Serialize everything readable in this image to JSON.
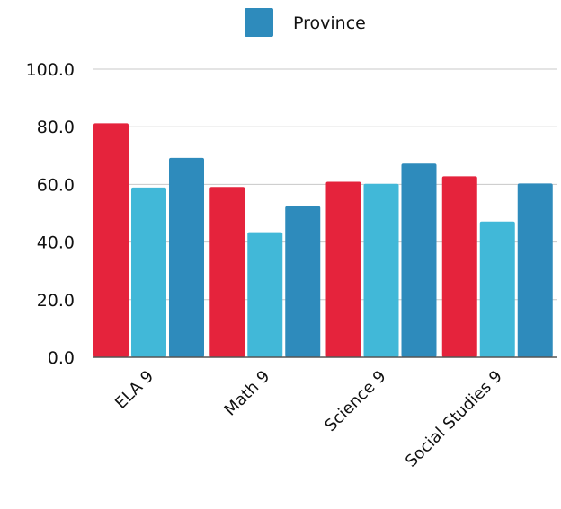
{
  "chart_data": {
    "type": "bar",
    "categories": [
      "ELA 9",
      "Math 9",
      "Science 9",
      "Social Studies 9"
    ],
    "series": [
      {
        "values": [
          81.2,
          59.1,
          60.9,
          62.8
        ],
        "color": "#e5233c"
      },
      {
        "values": [
          58.9,
          43.4,
          60.2,
          47.1
        ],
        "color": "#41b8d8"
      },
      {
        "name": "Province",
        "values": [
          69.2,
          52.4,
          67.2,
          60.3
        ],
        "color": "#2e8bbc"
      }
    ],
    "ylim": [
      0,
      100
    ],
    "yticks": [
      "0.0",
      "20.0",
      "40.0",
      "60.0",
      "80.0",
      "100.0"
    ],
    "grid": true,
    "legend": {
      "position": "top",
      "label": "Province",
      "color": "#2e8bbc"
    }
  }
}
